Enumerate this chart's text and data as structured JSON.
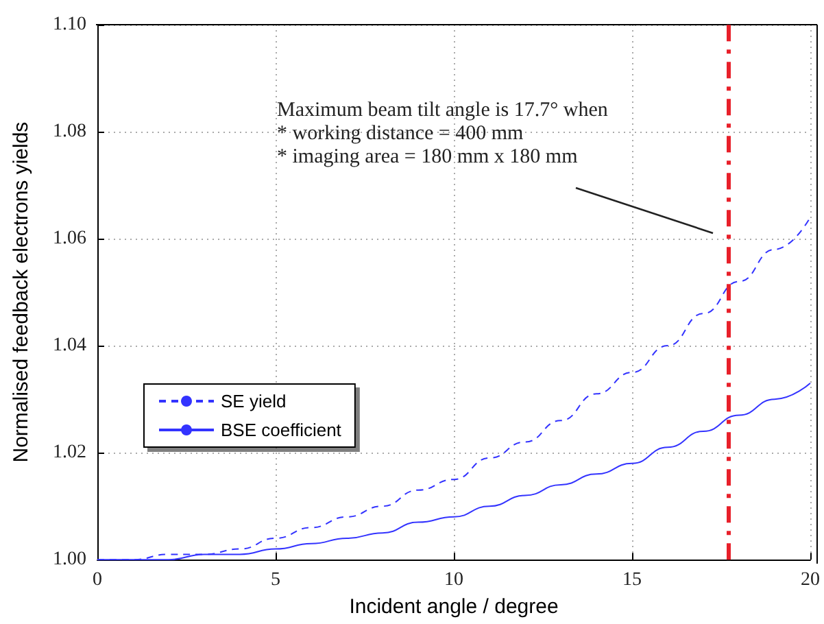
{
  "chart_data": {
    "type": "line",
    "xlabel": "Incident angle / degree",
    "ylabel": "Normalised feedback electrons yields",
    "x": [
      0,
      1,
      2,
      3,
      4,
      5,
      6,
      7,
      8,
      9,
      10,
      11,
      12,
      13,
      14,
      15,
      16,
      17,
      18,
      19,
      20
    ],
    "series": [
      {
        "name": "SE yield",
        "color": "#3333ff",
        "line_style": "dashed",
        "values": [
          1.0,
          1.0,
          1.001,
          1.001,
          1.002,
          1.004,
          1.006,
          1.008,
          1.01,
          1.013,
          1.015,
          1.019,
          1.022,
          1.026,
          1.031,
          1.035,
          1.04,
          1.046,
          1.052,
          1.058,
          1.064
        ]
      },
      {
        "name": "BSE coefficient",
        "color": "#3333ff",
        "line_style": "solid",
        "values": [
          1.0,
          1.0,
          1.0,
          1.001,
          1.001,
          1.002,
          1.003,
          1.004,
          1.005,
          1.007,
          1.008,
          1.01,
          1.012,
          1.014,
          1.016,
          1.018,
          1.021,
          1.024,
          1.027,
          1.03,
          1.033
        ]
      }
    ],
    "xlim": [
      0,
      20
    ],
    "xticks": [
      0,
      5,
      10,
      15,
      20
    ],
    "ylim": [
      1.0,
      1.1
    ],
    "yticks": [
      {
        "value": 1.0,
        "label": "1.00"
      },
      {
        "value": 1.02,
        "label": "1.02"
      },
      {
        "value": 1.04,
        "label": "1.04"
      },
      {
        "value": 1.06,
        "label": "1.06"
      },
      {
        "value": 1.08,
        "label": "1.08"
      },
      {
        "value": 1.1,
        "label": "1.10"
      }
    ],
    "ref_lines": [
      {
        "axis": "x",
        "value": 17.7,
        "color": "#e8202a",
        "line_style": "dashed"
      }
    ],
    "annotations": [
      "Maximum beam tilt angle is 17.7° when\n* working distance = 400 mm\n* imaging area = 180 mm x 180 mm"
    ],
    "grid": true,
    "legend": "bottom left",
    "marker": "none"
  }
}
